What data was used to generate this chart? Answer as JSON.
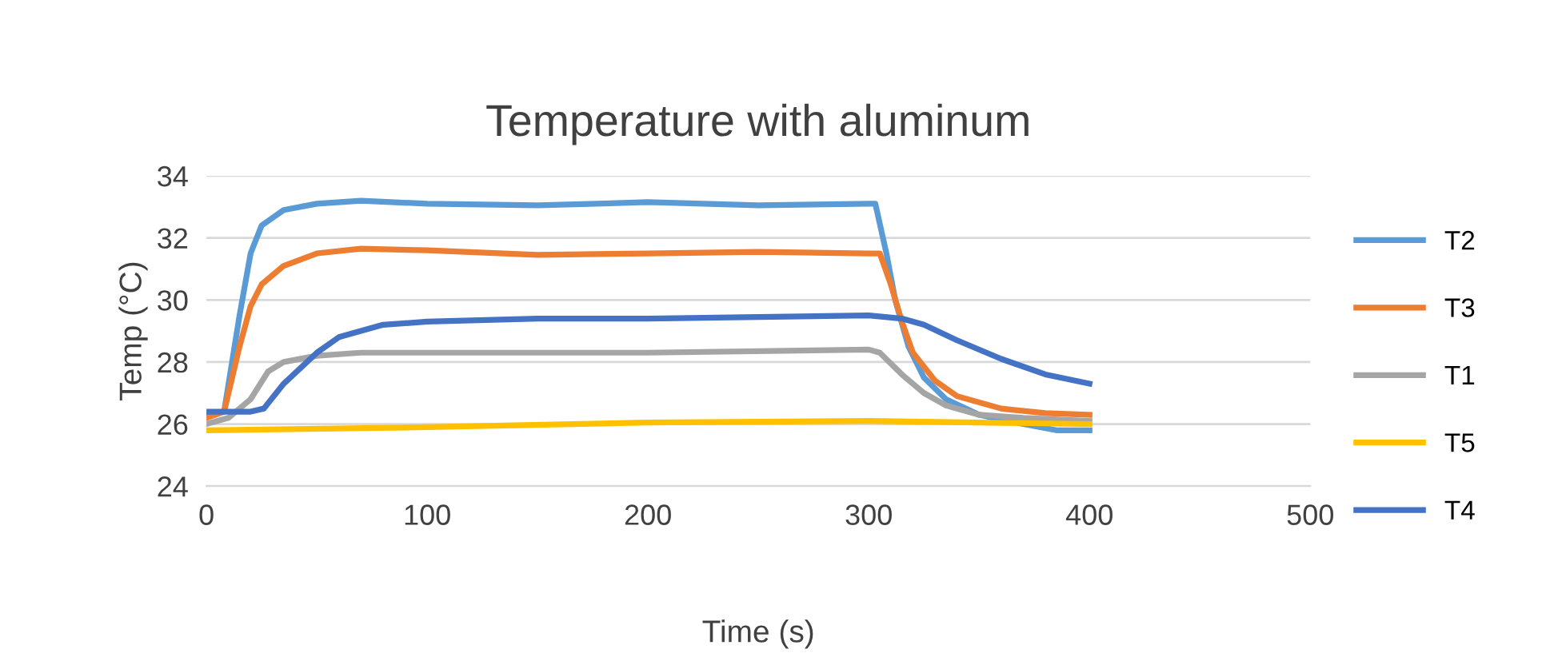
{
  "chart_data": {
    "type": "line",
    "title": "Temperature with aluminum",
    "xlabel": "Time (s)",
    "ylabel": "Temp (°C)",
    "xlim": [
      0,
      500
    ],
    "xticks": [
      0,
      100,
      200,
      300,
      400,
      500
    ],
    "ylim": [
      24,
      34
    ],
    "yticks": [
      24,
      26,
      28,
      30,
      32,
      34
    ],
    "grid": "y",
    "legend": "right",
    "line_style": "solid",
    "marker": "none",
    "series": [
      {
        "name": "T2",
        "color": "#5b9bd5",
        "x": [
          0,
          8,
          15,
          20,
          25,
          35,
          50,
          70,
          100,
          150,
          200,
          250,
          300,
          303,
          308,
          312,
          318,
          325,
          335,
          350,
          370,
          385,
          400
        ],
        "values": [
          26.3,
          26.4,
          29.5,
          31.5,
          32.4,
          32.9,
          33.1,
          33.2,
          33.1,
          33.05,
          33.15,
          33.05,
          33.1,
          33.1,
          31.5,
          30,
          28.5,
          27.5,
          26.8,
          26.3,
          26.0,
          25.8,
          25.8
        ]
      },
      {
        "name": "T3",
        "color": "#ed7d31",
        "x": [
          0,
          8,
          15,
          20,
          25,
          35,
          50,
          70,
          100,
          150,
          200,
          250,
          300,
          305,
          310,
          315,
          320,
          330,
          340,
          360,
          380,
          400
        ],
        "values": [
          26.2,
          26.4,
          28.5,
          29.8,
          30.5,
          31.1,
          31.5,
          31.65,
          31.6,
          31.45,
          31.5,
          31.55,
          31.5,
          31.5,
          30.5,
          29.3,
          28.3,
          27.4,
          26.9,
          26.5,
          26.35,
          26.3
        ]
      },
      {
        "name": "T1",
        "color": "#a5a5a5",
        "x": [
          0,
          10,
          20,
          28,
          35,
          50,
          70,
          100,
          200,
          300,
          305,
          315,
          325,
          335,
          350,
          370,
          400
        ],
        "values": [
          26.0,
          26.2,
          26.8,
          27.7,
          28.0,
          28.2,
          28.3,
          28.3,
          28.3,
          28.4,
          28.3,
          27.6,
          27.0,
          26.6,
          26.3,
          26.2,
          26.1
        ]
      },
      {
        "name": "T5",
        "color": "#ffc000",
        "x": [
          0,
          100,
          200,
          300,
          400
        ],
        "values": [
          25.8,
          25.9,
          26.05,
          26.1,
          26.0
        ]
      },
      {
        "name": "T4",
        "color": "#4472c4",
        "x": [
          0,
          20,
          26,
          35,
          50,
          60,
          80,
          100,
          150,
          200,
          250,
          300,
          315,
          325,
          340,
          360,
          380,
          400
        ],
        "values": [
          26.4,
          26.4,
          26.5,
          27.3,
          28.3,
          28.8,
          29.2,
          29.3,
          29.4,
          29.4,
          29.45,
          29.5,
          29.4,
          29.2,
          28.7,
          28.1,
          27.6,
          27.3
        ]
      }
    ]
  }
}
